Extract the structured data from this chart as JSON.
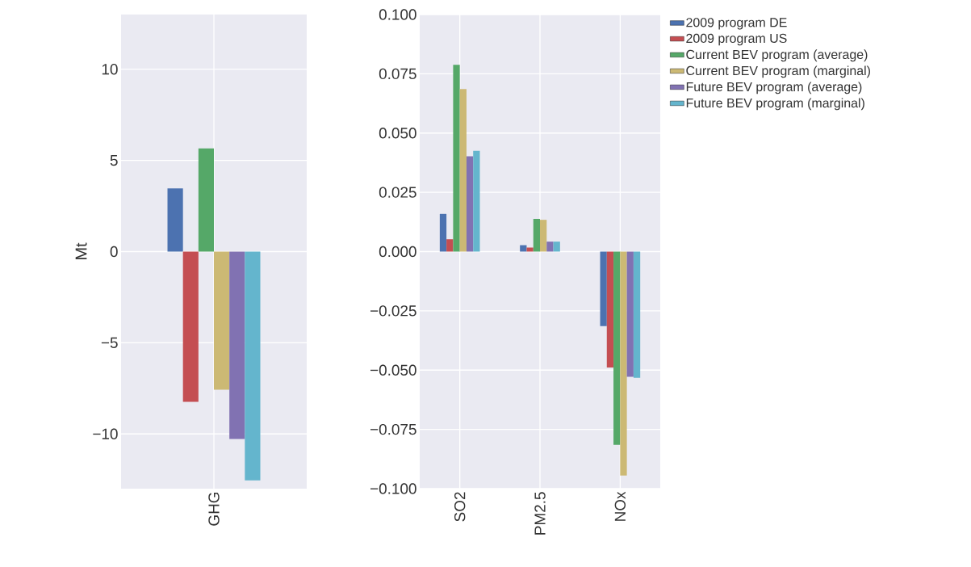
{
  "chart_data": [
    {
      "type": "bar",
      "categories": [
        "GHG"
      ],
      "ylabel": "Mt",
      "ylim": [
        -13,
        13
      ],
      "yticks": [
        {
          "value": -10,
          "label": "−10"
        },
        {
          "value": -5,
          "label": "−5"
        },
        0,
        5,
        10
      ],
      "grid": true,
      "series": [
        {
          "color": "#4c72b0",
          "values": [
            3.46
          ]
        },
        {
          "color": "#c44e52",
          "values": [
            -8.24
          ]
        },
        {
          "color": "#55a868",
          "values": [
            5.66
          ]
        },
        {
          "color": "#ccb974",
          "values": [
            -7.57
          ]
        },
        {
          "color": "#8172b2",
          "values": [
            -10.28
          ]
        },
        {
          "color": "#64b5cd",
          "values": [
            -12.55
          ]
        }
      ]
    },
    {
      "type": "bar",
      "categories": [
        "SO2",
        "PM2.5",
        "NOx"
      ],
      "ylim": [
        -0.1,
        0.1
      ],
      "yticks": [
        {
          "value": -0.1,
          "label": "−0.100"
        },
        {
          "value": -0.075,
          "label": "−0.075"
        },
        {
          "value": -0.05,
          "label": "−0.050"
        },
        {
          "value": -0.025,
          "label": "−0.025"
        },
        {
          "value": 0,
          "label": "0.000"
        },
        {
          "value": 0.025,
          "label": "0.025"
        },
        {
          "value": 0.05,
          "label": "0.050"
        },
        {
          "value": 0.075,
          "label": "0.075"
        },
        {
          "value": 0.1,
          "label": "0.100"
        }
      ],
      "grid": true,
      "legend": "top right",
      "series": [
        {
          "name": "2009 program DE",
          "color": "#4c72b0",
          "values": [
            0.0159,
            0.0027,
            -0.0314
          ]
        },
        {
          "name": "2009 program US",
          "color": "#c44e52",
          "values": [
            0.0052,
            0.0017,
            -0.0489
          ]
        },
        {
          "name": "Current BEV program (average)",
          "color": "#55a868",
          "values": [
            0.0788,
            0.0138,
            -0.0815
          ]
        },
        {
          "name": "Current BEV program (marginal)",
          "color": "#ccb974",
          "values": [
            0.0686,
            0.0134,
            -0.0945
          ]
        },
        {
          "name": "Future BEV program (average)",
          "color": "#8172b2",
          "values": [
            0.0402,
            0.0042,
            -0.0528
          ]
        },
        {
          "name": "Future BEV program (marginal)",
          "color": "#64b5cd",
          "values": [
            0.0425,
            0.0042,
            -0.0532
          ]
        }
      ]
    }
  ]
}
